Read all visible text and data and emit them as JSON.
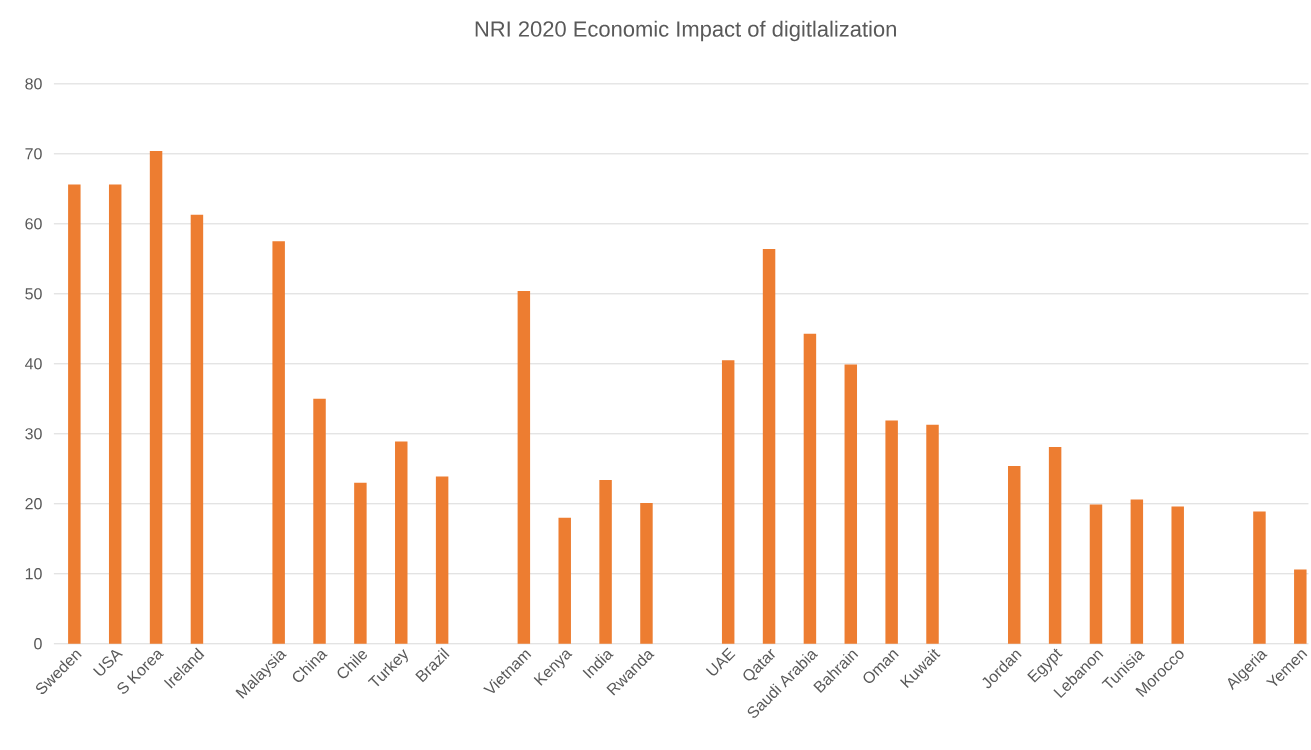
{
  "chart_data": {
    "type": "bar",
    "title": "NRI 2020 Economic Impact of digitlalization",
    "categories": [
      "Sweden",
      "USA",
      "S Korea",
      "Ireland",
      null,
      "Malaysia",
      "China",
      "Chile",
      "Turkey",
      "Brazil",
      null,
      "Vietnam",
      "Kenya",
      "India",
      "Rwanda",
      null,
      "UAE",
      "Qatar",
      "Saudi Arabia",
      "Bahrain",
      "Oman",
      "Kuwait",
      null,
      "Jordan",
      "Egypt",
      "Lebanon",
      "Tunisia",
      "Morocco",
      null,
      "Algeria",
      "Yemen"
    ],
    "values": [
      65.6,
      65.6,
      70.4,
      61.3,
      null,
      57.5,
      35.0,
      23.0,
      28.9,
      23.9,
      null,
      50.4,
      18.0,
      23.4,
      20.1,
      null,
      40.5,
      56.4,
      44.3,
      39.9,
      31.9,
      31.3,
      null,
      25.4,
      28.1,
      19.9,
      20.6,
      19.6,
      null,
      18.9,
      10.6
    ],
    "color": "#ed7d31",
    "ylim": [
      0,
      80
    ],
    "yticks": [
      0,
      10,
      20,
      30,
      40,
      50,
      60,
      70,
      80
    ],
    "grid": true
  }
}
